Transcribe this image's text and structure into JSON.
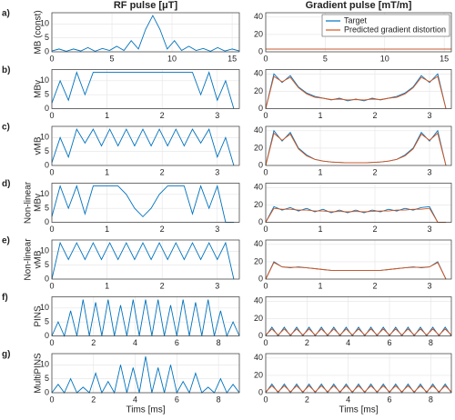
{
  "chart_data": [
    {
      "type": "line",
      "title": "RF pulse [μT]",
      "label": "a)",
      "ylabel": [
        "MB (const)"
      ],
      "x": [
        0,
        0.6,
        1.2,
        1.8,
        2.4,
        3,
        3.6,
        4.2,
        4.8,
        5.4,
        6,
        6.6,
        7.2,
        7.8,
        8.4,
        9,
        9.6,
        10.2,
        10.8,
        11.4,
        12,
        12.6,
        13.2,
        13.8,
        14.4,
        15,
        15.6
      ],
      "series": [
        {
          "color": "#0072bd",
          "values": [
            0.3,
            1,
            0.2,
            1,
            0.3,
            1.5,
            0.2,
            1.2,
            0.5,
            2,
            0.5,
            4,
            1,
            8,
            13,
            8,
            1,
            4,
            0.5,
            2,
            0.5,
            1.2,
            0.2,
            1.5,
            0.3,
            1,
            0.3
          ]
        }
      ],
      "xlim": [
        0,
        15.6
      ],
      "xticks": [
        0,
        5,
        10,
        15
      ],
      "ylim": [
        0,
        14
      ],
      "yticks": [
        0,
        5,
        10
      ],
      "grid": true
    },
    {
      "type": "line",
      "title": "Gradient pulse [mT/m]",
      "x": [
        0,
        15.6
      ],
      "series": [
        {
          "name": "Target",
          "color": "#0072bd",
          "values": [
            3,
            3
          ]
        },
        {
          "name": "Predicted gradient distortion",
          "color": "#d95319",
          "values": [
            3,
            3
          ]
        }
      ],
      "legend": "upper right",
      "xlim": [
        0,
        15.6
      ],
      "xticks": [
        0,
        5,
        10,
        15
      ],
      "ylim": [
        0,
        45
      ],
      "yticks": [
        0,
        20,
        40
      ],
      "grid": true
    },
    {
      "type": "line",
      "label": "b)",
      "ylabel": [
        "MBv"
      ],
      "x": [
        0,
        0.15,
        0.3,
        0.45,
        0.6,
        0.75,
        0.9,
        1.05,
        1.2,
        1.35,
        1.5,
        1.65,
        1.8,
        1.95,
        2.1,
        2.25,
        2.4,
        2.55,
        2.7,
        2.85,
        3,
        3.15,
        3.3
      ],
      "series": [
        {
          "color": "#0072bd",
          "values": [
            2,
            10,
            3,
            13,
            5,
            13,
            13,
            13,
            13,
            13,
            13,
            13,
            13,
            13,
            13,
            13,
            13,
            13,
            5,
            13,
            3,
            10,
            0
          ]
        }
      ],
      "xlim": [
        0,
        3.4
      ],
      "xticks": [
        0,
        1,
        2,
        3
      ],
      "ylim": [
        0,
        14
      ],
      "yticks": [
        0,
        5,
        10
      ],
      "grid": true
    },
    {
      "type": "line",
      "x": [
        0,
        0.15,
        0.3,
        0.45,
        0.6,
        0.75,
        0.9,
        1.05,
        1.2,
        1.35,
        1.5,
        1.65,
        1.8,
        1.95,
        2.1,
        2.25,
        2.4,
        2.55,
        2.7,
        2.85,
        3,
        3.15,
        3.3
      ],
      "series": [
        {
          "color": "#0072bd",
          "values": [
            0,
            40,
            30,
            38,
            25,
            18,
            14,
            12,
            10,
            12,
            9,
            11,
            9,
            12,
            10,
            12,
            14,
            18,
            25,
            38,
            30,
            40,
            0
          ]
        },
        {
          "color": "#d95319",
          "values": [
            0,
            37,
            31,
            36,
            24,
            17,
            13,
            12,
            10.5,
            11,
            10,
            10.5,
            10,
            11,
            10.5,
            12,
            13,
            17,
            24,
            36,
            31,
            37,
            0
          ]
        }
      ],
      "xlim": [
        0,
        3.4
      ],
      "xticks": [
        0,
        1,
        2,
        3
      ],
      "ylim": [
        0,
        45
      ],
      "yticks": [
        0,
        20,
        40
      ],
      "grid": true
    },
    {
      "type": "line",
      "label": "c)",
      "ylabel": [
        "vMB"
      ],
      "x": [
        0,
        0.15,
        0.3,
        0.45,
        0.6,
        0.75,
        0.9,
        1.05,
        1.2,
        1.35,
        1.5,
        1.65,
        1.8,
        1.95,
        2.1,
        2.25,
        2.4,
        2.55,
        2.7,
        2.85,
        3,
        3.15,
        3.3
      ],
      "series": [
        {
          "color": "#0072bd",
          "values": [
            1,
            10,
            3,
            13,
            8,
            13,
            7,
            13,
            7,
            13,
            7,
            13,
            7,
            13,
            7,
            13,
            7,
            13,
            8,
            13,
            3,
            10,
            0
          ]
        }
      ],
      "xlim": [
        0,
        3.4
      ],
      "xticks": [
        0,
        1,
        2,
        3
      ],
      "ylim": [
        0,
        14
      ],
      "yticks": [
        0,
        5,
        10
      ],
      "grid": true
    },
    {
      "type": "line",
      "x": [
        0,
        0.15,
        0.3,
        0.45,
        0.6,
        0.75,
        0.9,
        1.05,
        1.2,
        1.35,
        1.5,
        1.65,
        1.8,
        1.95,
        2.1,
        2.25,
        2.4,
        2.55,
        2.7,
        2.85,
        3,
        3.15,
        3.3
      ],
      "series": [
        {
          "color": "#0072bd",
          "values": [
            0,
            40,
            28,
            38,
            20,
            12,
            7,
            5,
            4,
            3.5,
            3,
            3,
            3,
            3.5,
            4,
            5,
            7,
            12,
            20,
            38,
            28,
            40,
            0
          ]
        },
        {
          "color": "#d95319",
          "values": [
            0,
            37,
            29,
            36,
            19,
            11,
            7,
            5,
            4,
            3.5,
            3,
            3,
            3,
            3.5,
            4,
            5,
            7,
            11,
            19,
            36,
            29,
            37,
            0
          ]
        }
      ],
      "xlim": [
        0,
        3.4
      ],
      "xticks": [
        0,
        1,
        2,
        3
      ],
      "ylim": [
        0,
        45
      ],
      "yticks": [
        0,
        20,
        40
      ],
      "grid": true
    },
    {
      "type": "line",
      "label": "d)",
      "ylabel": [
        "Non-linear",
        "MBv"
      ],
      "x": [
        0,
        0.15,
        0.3,
        0.45,
        0.6,
        0.75,
        0.9,
        1.05,
        1.2,
        1.35,
        1.5,
        1.65,
        1.8,
        1.95,
        2.1,
        2.25,
        2.4,
        2.55,
        2.7,
        2.85,
        3,
        3.15,
        3.3
      ],
      "series": [
        {
          "color": "#0072bd",
          "values": [
            2,
            13,
            5,
            13,
            3,
            13,
            13,
            13,
            13,
            10,
            5,
            2,
            5,
            10,
            13,
            13,
            13,
            3,
            13,
            5,
            13,
            0,
            0
          ]
        }
      ],
      "xlim": [
        0,
        3.4
      ],
      "xticks": [
        0,
        1,
        2,
        3
      ],
      "ylim": [
        0,
        14
      ],
      "yticks": [
        0,
        5,
        10
      ],
      "grid": true
    },
    {
      "type": "line",
      "x": [
        0,
        0.15,
        0.3,
        0.45,
        0.6,
        0.75,
        0.9,
        1.05,
        1.2,
        1.35,
        1.5,
        1.65,
        1.8,
        1.95,
        2.1,
        2.25,
        2.4,
        2.55,
        2.7,
        2.85,
        3,
        3.15,
        3.3
      ],
      "series": [
        {
          "color": "#0072bd",
          "values": [
            0,
            18,
            14,
            17,
            13,
            16,
            12,
            15,
            11,
            14,
            11,
            14,
            11,
            14,
            12,
            15,
            13,
            16,
            14,
            17,
            18,
            0,
            0
          ]
        },
        {
          "color": "#d95319",
          "values": [
            0,
            16,
            15,
            15,
            14,
            14,
            13,
            13,
            12,
            12.5,
            12,
            12.5,
            12,
            12.5,
            13,
            13,
            14,
            14,
            15,
            15,
            16,
            0,
            0
          ]
        }
      ],
      "xlim": [
        0,
        3.4
      ],
      "xticks": [
        0,
        1,
        2,
        3
      ],
      "ylim": [
        0,
        45
      ],
      "yticks": [
        0,
        20,
        40
      ],
      "grid": true
    },
    {
      "type": "line",
      "label": "e)",
      "ylabel": [
        "Non-linear",
        "vMB"
      ],
      "x": [
        0,
        0.15,
        0.3,
        0.45,
        0.6,
        0.75,
        0.9,
        1.05,
        1.2,
        1.35,
        1.5,
        1.65,
        1.8,
        1.95,
        2.1,
        2.25,
        2.4,
        2.55,
        2.7,
        2.85,
        3,
        3.15,
        3.3
      ],
      "series": [
        {
          "color": "#0072bd",
          "values": [
            0,
            13,
            7,
            13,
            7,
            13,
            7,
            13,
            7,
            13,
            7,
            13,
            7,
            13,
            7,
            13,
            7,
            13,
            7,
            13,
            7,
            13,
            0
          ]
        }
      ],
      "xlim": [
        0,
        3.4
      ],
      "xticks": [
        0,
        1,
        2,
        3
      ],
      "ylim": [
        0,
        14
      ],
      "yticks": [
        0,
        5,
        10
      ],
      "grid": true
    },
    {
      "type": "line",
      "x": [
        0,
        0.15,
        0.3,
        0.45,
        0.6,
        0.75,
        0.9,
        1.05,
        1.2,
        1.35,
        1.5,
        1.65,
        1.8,
        1.95,
        2.1,
        2.25,
        2.4,
        2.55,
        2.7,
        2.85,
        3,
        3.15,
        3.3
      ],
      "series": [
        {
          "color": "#0072bd",
          "values": [
            0,
            20,
            14,
            13,
            14,
            13,
            12,
            11,
            10,
            10,
            10,
            10,
            10,
            10,
            10,
            11,
            12,
            13,
            14,
            13,
            14,
            20,
            0
          ]
        },
        {
          "color": "#d95319",
          "values": [
            0,
            19,
            14,
            13.5,
            13.5,
            13,
            12,
            11,
            10,
            10,
            10,
            10,
            10,
            10,
            10,
            11,
            12,
            13,
            13.5,
            13.5,
            14,
            19,
            0
          ]
        }
      ],
      "xlim": [
        0,
        3.4
      ],
      "xticks": [
        0,
        1,
        2,
        3
      ],
      "ylim": [
        0,
        45
      ],
      "yticks": [
        0,
        20,
        40
      ],
      "grid": true
    },
    {
      "type": "line",
      "label": "f)",
      "ylabel": [
        "PINS"
      ],
      "x": [
        0,
        0.3,
        0.6,
        0.9,
        1.2,
        1.5,
        1.8,
        2.1,
        2.4,
        2.7,
        3,
        3.3,
        3.6,
        3.9,
        4.2,
        4.5,
        4.8,
        5.1,
        5.4,
        5.7,
        6,
        6.3,
        6.6,
        6.9,
        7.2,
        7.5,
        7.8,
        8.1,
        8.4,
        8.7,
        9
      ],
      "series": [
        {
          "color": "#0072bd",
          "values": [
            0,
            5,
            0,
            9,
            0,
            13,
            0,
            12,
            0,
            13,
            0,
            11,
            0,
            13,
            0,
            13,
            0,
            13,
            0,
            11,
            0,
            13,
            0,
            12,
            0,
            13,
            0,
            9,
            0,
            5,
            0
          ]
        }
      ],
      "xlim": [
        0,
        9
      ],
      "xticks": [
        0,
        2,
        4,
        6,
        8
      ],
      "ylim": [
        0,
        14
      ],
      "yticks": [
        0,
        5,
        10
      ],
      "grid": true
    },
    {
      "type": "line",
      "x": [
        0,
        0.3,
        0.6,
        0.9,
        1.2,
        1.5,
        1.8,
        2.1,
        2.4,
        2.7,
        3,
        3.3,
        3.6,
        3.9,
        4.2,
        4.5,
        4.8,
        5.1,
        5.4,
        5.7,
        6,
        6.3,
        6.6,
        6.9,
        7.2,
        7.5,
        7.8,
        8.1,
        8.4,
        8.7,
        9
      ],
      "series": [
        {
          "color": "#0072bd",
          "values": [
            0,
            10,
            0,
            10,
            0,
            10,
            0,
            10,
            0,
            10,
            0,
            10,
            0,
            10,
            0,
            10,
            0,
            10,
            0,
            10,
            0,
            10,
            0,
            10,
            0,
            10,
            0,
            10,
            0,
            10,
            0
          ]
        },
        {
          "color": "#d95319",
          "values": [
            1,
            8,
            1,
            8,
            1,
            8,
            1,
            8,
            1,
            8,
            1,
            8,
            1,
            8,
            1,
            8,
            1,
            8,
            1,
            8,
            1,
            8,
            1,
            8,
            1,
            8,
            1,
            8,
            1,
            8,
            1
          ]
        }
      ],
      "xlim": [
        0,
        9
      ],
      "xticks": [
        0,
        2,
        4,
        6,
        8
      ],
      "ylim": [
        0,
        45
      ],
      "yticks": [
        0,
        20,
        40
      ],
      "grid": true
    },
    {
      "type": "line",
      "label": "g)",
      "ylabel": [
        "MultiPINS"
      ],
      "xlabel": "Tims [ms]",
      "x": [
        0,
        0.3,
        0.6,
        0.9,
        1.2,
        1.5,
        1.8,
        2.1,
        2.4,
        2.7,
        3,
        3.3,
        3.6,
        3.9,
        4.2,
        4.5,
        4.8,
        5.1,
        5.4,
        5.7,
        6,
        6.3,
        6.6,
        6.9,
        7.2,
        7.5,
        7.8,
        8.1,
        8.4,
        8.7,
        9
      ],
      "series": [
        {
          "color": "#0072bd",
          "values": [
            0,
            3,
            0,
            5,
            0,
            2,
            0,
            7,
            0,
            4,
            0,
            10,
            0,
            9,
            0,
            13,
            0,
            9,
            0,
            10,
            0,
            4,
            0,
            7,
            0,
            2,
            0,
            5,
            0,
            3,
            0
          ]
        }
      ],
      "xlim": [
        0,
        9
      ],
      "xticks": [
        0,
        2,
        4,
        6,
        8
      ],
      "ylim": [
        0,
        14
      ],
      "yticks": [
        0,
        5,
        10
      ],
      "grid": true
    },
    {
      "type": "line",
      "xlabel": "Tims [ms]",
      "x": [
        0,
        0.3,
        0.6,
        0.9,
        1.2,
        1.5,
        1.8,
        2.1,
        2.4,
        2.7,
        3,
        3.3,
        3.6,
        3.9,
        4.2,
        4.5,
        4.8,
        5.1,
        5.4,
        5.7,
        6,
        6.3,
        6.6,
        6.9,
        7.2,
        7.5,
        7.8,
        8.1,
        8.4,
        8.7,
        9
      ],
      "series": [
        {
          "color": "#0072bd",
          "values": [
            0,
            10,
            0,
            10,
            0,
            10,
            0,
            10,
            0,
            10,
            0,
            10,
            0,
            10,
            0,
            10,
            0,
            10,
            0,
            10,
            0,
            10,
            0,
            10,
            0,
            10,
            0,
            10,
            0,
            10,
            0
          ]
        },
        {
          "color": "#d95319",
          "values": [
            1,
            8,
            1,
            8,
            1,
            8,
            1,
            8,
            1,
            8,
            1,
            8,
            1,
            8,
            1,
            8,
            1,
            8,
            1,
            8,
            1,
            8,
            1,
            8,
            1,
            8,
            1,
            8,
            1,
            8,
            1
          ]
        }
      ],
      "xlim": [
        0,
        9
      ],
      "xticks": [
        0,
        2,
        4,
        6,
        8
      ],
      "ylim": [
        0,
        45
      ],
      "yticks": [
        0,
        20,
        40
      ],
      "grid": true
    }
  ]
}
